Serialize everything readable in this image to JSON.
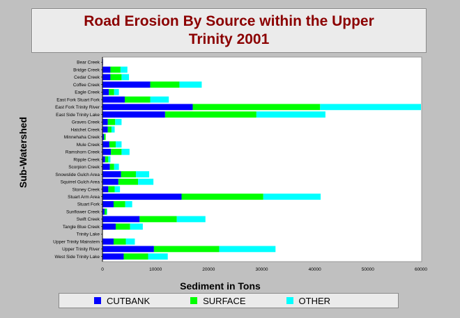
{
  "chart_data": {
    "type": "bar",
    "orientation": "horizontal",
    "stacked": true,
    "title": "Road Erosion By Source within the Upper Trinity 2001",
    "xlabel": "Sediment in Tons",
    "ylabel": "Sub-Watershed",
    "xlim": [
      0,
      60000
    ],
    "xticks": [
      "0",
      "10000",
      "20000",
      "30000",
      "40000",
      "50000",
      "60000"
    ],
    "legend_position": "bottom",
    "categories": [
      "Bear Creek",
      "Bridge Creek",
      "Cedar Creek",
      "Coffee Creek",
      "Eagle Creek",
      "East Fork Stuart Fork",
      "East Fork Trinity River",
      "East Side Trinity Lake",
      "Graves Creek",
      "Hatchet Creek",
      "Minnehaha Creek",
      "Mule Creek",
      "Ramshorn Creek",
      "Ripple Creek",
      "Scorpion Creek",
      "Snowslide Gulch Area",
      "Squirrel Gulch Area",
      "Stoney Creek",
      "Stuart Arm Area",
      "Stuart Fork",
      "Sunflower Creek",
      "Swift Creek",
      "Tangle Blue Creek",
      "Trinity Lake",
      "Upper Trinity Mainstem",
      "Upper Trinity River",
      "West Side Trinity Lake"
    ],
    "series": [
      {
        "name": "CUTBANK",
        "color": "#0000ff",
        "values": [
          100,
          1500,
          1500,
          9000,
          1200,
          4200,
          17000,
          11800,
          1000,
          1000,
          300,
          1300,
          1600,
          500,
          1400,
          3500,
          3000,
          1100,
          14900,
          2100,
          400,
          7000,
          2500,
          0,
          2100,
          9700,
          4000
        ]
      },
      {
        "name": "SURFACE",
        "color": "#00ff00",
        "values": [
          0,
          1900,
          2100,
          5500,
          1000,
          4800,
          24000,
          17200,
          1400,
          700,
          300,
          1200,
          2000,
          600,
          800,
          2800,
          3700,
          1200,
          15400,
          2200,
          400,
          7000,
          2700,
          0,
          2300,
          12300,
          4600
        ]
      },
      {
        "name": "OTHER",
        "color": "#00ffff",
        "values": [
          0,
          1300,
          1400,
          4200,
          900,
          3500,
          19000,
          13000,
          1200,
          600,
          0,
          1100,
          1500,
          400,
          900,
          2500,
          2900,
          1000,
          10800,
          1300,
          100,
          5400,
          2400,
          0,
          1700,
          10600,
          3700
        ]
      }
    ],
    "grid": false
  }
}
